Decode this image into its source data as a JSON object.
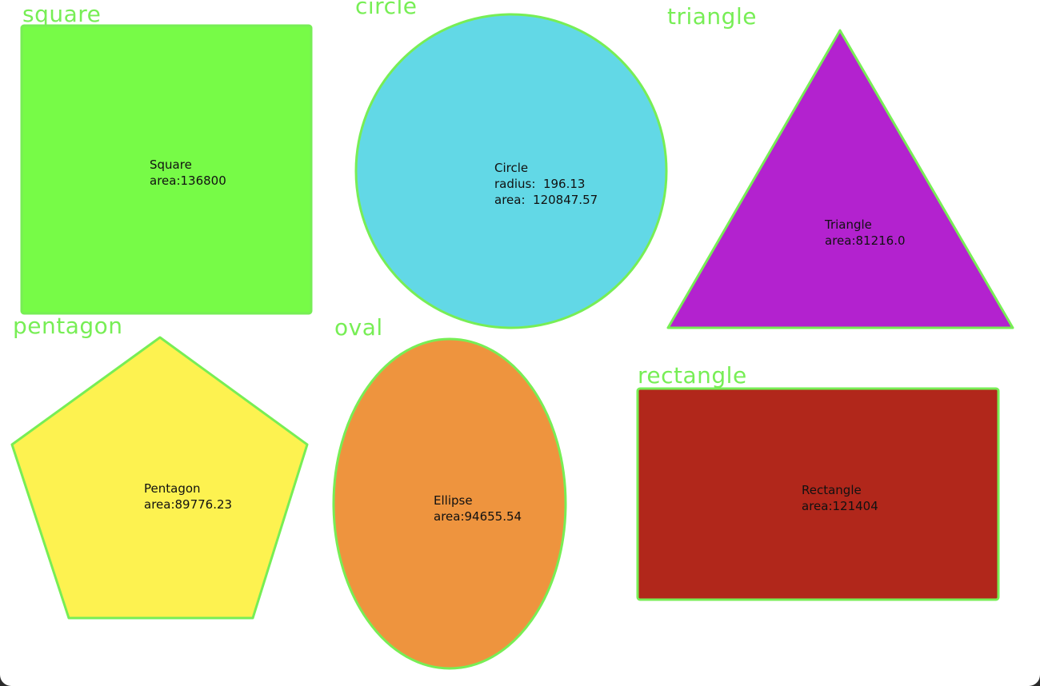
{
  "colors": {
    "outline": "#77ee55",
    "square": "#77fb47",
    "circle": "#62d8e6",
    "triangle": "#b322cf",
    "pentagon": "#fdf250",
    "oval": "#ee943e",
    "rectangle": "#b1271b",
    "label": "#77ee55",
    "text": "#111111"
  },
  "shapes": {
    "square": {
      "label": "square",
      "name": "Square",
      "area": "area:136800"
    },
    "circle": {
      "label": "circle",
      "name": "Circle",
      "radius": "radius:  196.13",
      "area": "area:  120847.57"
    },
    "triangle": {
      "label": "triangle",
      "name": "Triangle",
      "area": "area:81216.0"
    },
    "pentagon": {
      "label": "pentagon",
      "name": "Pentagon",
      "area": "area:89776.23"
    },
    "oval": {
      "label": "oval",
      "name": "Ellipse",
      "area": "area:94655.54"
    },
    "rectangle": {
      "label": "rectangle",
      "name": "Rectangle",
      "area": "area:121404"
    }
  }
}
